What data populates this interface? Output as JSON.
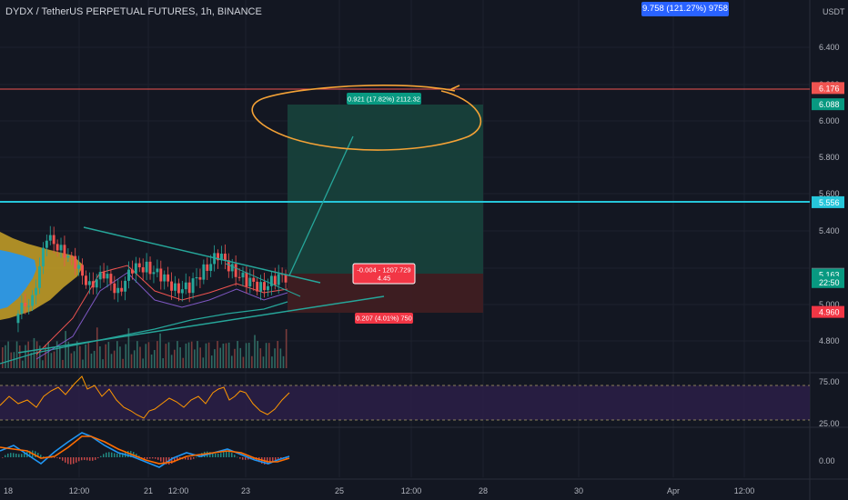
{
  "header": {
    "title": "DYDX / TetherUS PERPETUAL FUTURES, 1h, BINANCE",
    "top_badge": "9.758 (121.27%) 9758",
    "unit": "USDT"
  },
  "colors": {
    "background": "#131722",
    "profit_zone": "#17403b",
    "loss_zone": "#3f1e22",
    "resistance_line": "#ef5350",
    "support_line": "#26c6da",
    "trendline": "#26a69a",
    "annotation": "#f4a236",
    "volume_profile_blue": "#2196f3",
    "volume_profile_gold": "#c9a227",
    "rsi_band": "#2a1e45",
    "rsi_line": "#ff9800",
    "macd_line": "#2196f3",
    "signal_line": "#ff6d00"
  },
  "price_axis": {
    "ticks": [
      "6.400",
      "6.200",
      "6.000",
      "5.800",
      "5.600",
      "5.400",
      "5.000",
      "4.800"
    ]
  },
  "price_labels": [
    {
      "text": "6.176",
      "value": 6.176,
      "color": "#ef5350"
    },
    {
      "text": "6.088",
      "value": 6.088,
      "color": "#089981"
    },
    {
      "text": "5.556",
      "value": 5.556,
      "color": "#26c6da"
    },
    {
      "text": "5.167",
      "value": 5.167,
      "color": "#787b86"
    },
    {
      "text": "5.163",
      "value": 5.163,
      "color": "#089981"
    },
    {
      "text": "22:50",
      "value": 5.122,
      "color": "#089981"
    },
    {
      "text": "4.960",
      "value": 4.96,
      "color": "#f23645"
    }
  ],
  "position": {
    "entry": 5.167,
    "target": 6.088,
    "stop": 4.96,
    "target_label": "0.921 (17.82%) 2112.32",
    "entry_label_line1": "-0.004 - 1207.729",
    "entry_label_line2": "4.45",
    "stop_label": "0.207 (4.01%) 750"
  },
  "indicator_axis": {
    "rsi_ticks": [
      "75.00",
      "25.00"
    ],
    "macd_ticks": [
      "0.00"
    ]
  },
  "time_axis": {
    "labels": [
      "18",
      "12:00",
      "21",
      "12:00",
      "23",
      "25",
      "12:00",
      "28",
      "30",
      "Apr",
      "12:00"
    ]
  },
  "chart_data": {
    "type": "line",
    "title": "DYDX / TetherUS PERPETUAL FUTURES, 1h, BINANCE",
    "ylim": [
      4.7,
      6.5
    ],
    "horizontal_lines": [
      6.176,
      5.556
    ],
    "current_price": 5.163,
    "series": [
      {
        "name": "DYDXUSDT",
        "values": [
          4.95,
          5.05,
          5.35,
          5.32,
          5.2,
          5.12,
          5.15,
          5.08,
          5.18,
          5.22,
          5.14,
          5.1,
          5.08,
          5.2,
          5.26,
          5.2,
          5.12,
          5.1,
          5.13,
          5.16
        ]
      }
    ]
  }
}
